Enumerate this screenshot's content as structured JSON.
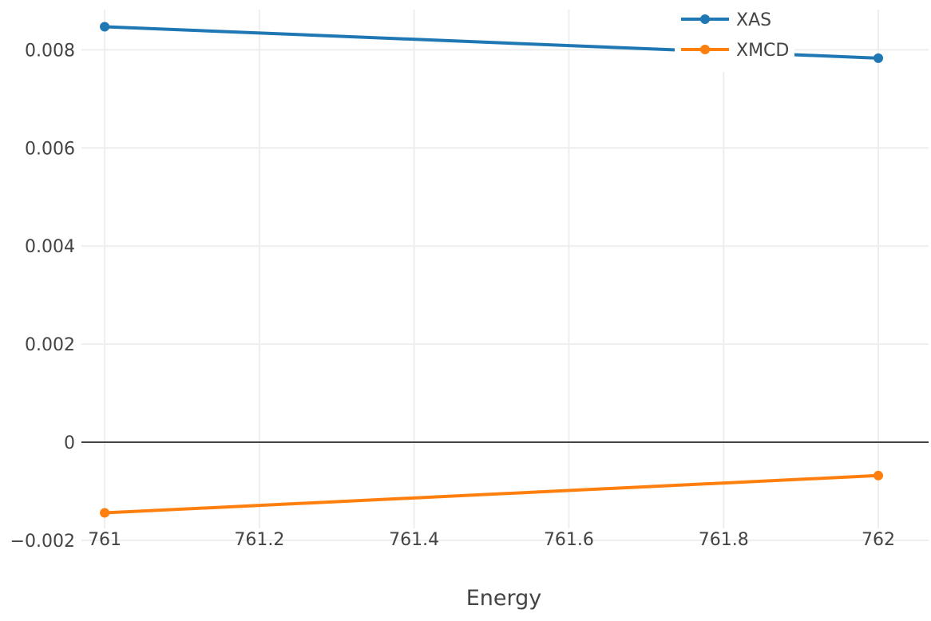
{
  "chart_data": {
    "type": "line",
    "title": "",
    "xlabel": "Energy",
    "ylabel": "",
    "xlim": [
      760.97,
      762.065
    ],
    "ylim": [
      -0.00205,
      0.00895
    ],
    "x_ticks": [
      761,
      761.2,
      761.4,
      761.6,
      761.8,
      762
    ],
    "x_tick_labels": [
      "761",
      "761.2",
      "761.4",
      "761.6",
      "761.8",
      "762"
    ],
    "y_ticks": [
      -0.002,
      0,
      0.002,
      0.004,
      0.006,
      0.008
    ],
    "y_tick_labels": [
      "−0.002",
      "0",
      "0.002",
      "0.004",
      "0.006",
      "0.008"
    ],
    "grid": true,
    "legend_position": "top-right",
    "series": [
      {
        "name": "XAS",
        "color": "#1f77b4",
        "x": [
          761,
          762
        ],
        "y": [
          0.00847,
          0.00783
        ]
      },
      {
        "name": "XMCD",
        "color": "#ff7f0e",
        "x": [
          761,
          762
        ],
        "y": [
          -0.00144,
          -0.00068
        ]
      }
    ]
  }
}
